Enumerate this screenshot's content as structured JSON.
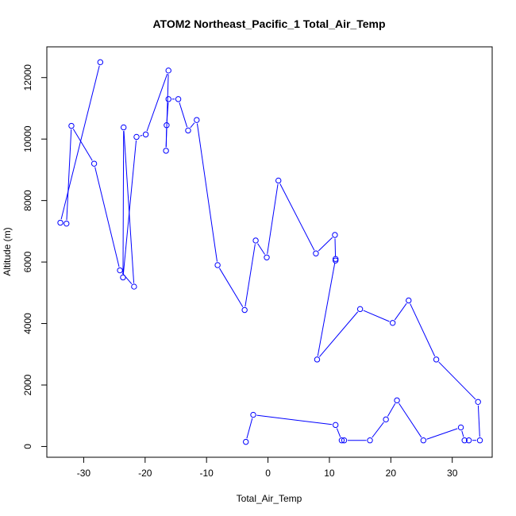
{
  "chart_data": {
    "type": "scatter",
    "title": "ATOM2 Northeast_Pacific_1 Total_Air_Temp",
    "xlabel": "Total_Air_Temp",
    "ylabel": "Altitude (m)",
    "xlim": [
      -36,
      36.5
    ],
    "ylim": [
      -350,
      13000
    ],
    "xticks": [
      -30,
      -20,
      -10,
      0,
      10,
      20,
      30
    ],
    "yticks": [
      0,
      2000,
      4000,
      6000,
      8000,
      10000,
      12000
    ],
    "grid": false,
    "color": "#0000ff",
    "series": [
      {
        "x": [
          -3.6,
          -2.4,
          11,
          12,
          12.4,
          16.6,
          19.2,
          21,
          25.3,
          31.4,
          32,
          32.7,
          34.5,
          34.2,
          27.4,
          22.9,
          20.3,
          15,
          8,
          11,
          11,
          10.9,
          7.8,
          1.7,
          -0.2,
          -2,
          -3.8,
          -8.2,
          -11.6,
          -13,
          -14.6,
          -16.2,
          -16.5,
          -16.6,
          -16.2,
          -19.9,
          -21.4,
          -23.6,
          -23.5,
          -21.8,
          -24.1,
          -28.3,
          -32,
          -32.8,
          -33.8,
          -27.3
        ],
        "y": [
          150,
          1030,
          700,
          200,
          200,
          200,
          880,
          1500,
          200,
          620,
          200,
          200,
          200,
          1450,
          2830,
          4750,
          4020,
          4470,
          2830,
          6100,
          6050,
          6880,
          6280,
          8650,
          6150,
          6700,
          4440,
          5900,
          10620,
          10280,
          11300,
          11300,
          10450,
          9620,
          12230,
          10150,
          10070,
          5500,
          10380,
          5200,
          5730,
          9200,
          10430,
          7250,
          7280,
          12500
        ]
      }
    ]
  }
}
